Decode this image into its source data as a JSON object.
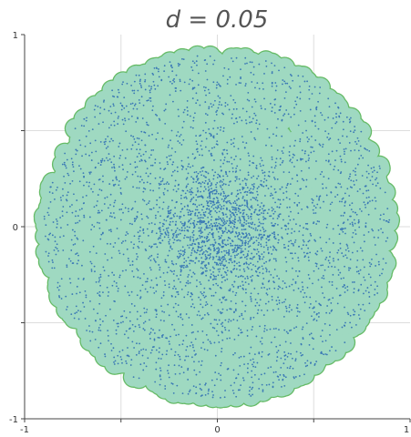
{
  "chart_data": {
    "type": "scatter",
    "title": "d = 0.05",
    "xlabel": "",
    "ylabel": "",
    "xlim": [
      -1,
      1
    ],
    "ylim": [
      -1,
      1
    ],
    "x_ticks": [
      -1,
      -0.5,
      0,
      0.5,
      1
    ],
    "x_tick_labels": [
      "-1",
      "",
      "0",
      "",
      "1"
    ],
    "y_ticks": [
      -1,
      -0.5,
      0,
      0.5,
      1
    ],
    "y_tick_labels": [
      "-1",
      "",
      "0",
      "",
      "1"
    ],
    "grid": true,
    "legend": "none",
    "disk_radius": 0.05,
    "point_distribution": {
      "shape": "disk",
      "center": [
        0,
        0
      ],
      "radius": 0.9,
      "approx_point_count": 4000,
      "density": "highest near center"
    },
    "colors": {
      "points": "#3a78b5",
      "disk_fill": "#9fd9c1",
      "disk_outline": "#66bb66",
      "grid": "#dddddd"
    }
  }
}
